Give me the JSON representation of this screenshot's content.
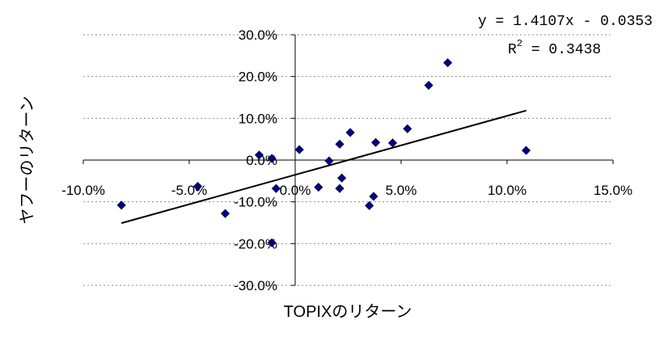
{
  "chart_data": {
    "type": "scatter",
    "xlabel": "TOPIXのリターン",
    "ylabel": "ヤフーのリターン",
    "xlim": [
      -0.1,
      0.15
    ],
    "ylim": [
      -0.3,
      0.3
    ],
    "x_ticks": [
      -0.1,
      -0.05,
      0.0,
      0.05,
      0.1,
      0.15
    ],
    "y_ticks": [
      0.3,
      0.2,
      0.1,
      0.0,
      -0.1,
      -0.2,
      -0.3
    ],
    "x_tick_labels": [
      "-10.0%",
      "-5.0%",
      "0.0%",
      "5.0%",
      "10.0%",
      "15.0%"
    ],
    "y_tick_labels": [
      "30.0%",
      "20.0%",
      "10.0%",
      "0.0%",
      "-10.0%",
      "-20.0%",
      "-30.0%"
    ],
    "grid": "horizontal dashed",
    "marker": "diamond",
    "marker_color": "#000080",
    "trendline_color": "#000000",
    "series": [
      {
        "points": [
          {
            "x": -0.082,
            "y": -0.108
          },
          {
            "x": -0.046,
            "y": -0.063
          },
          {
            "x": -0.033,
            "y": -0.128
          },
          {
            "x": -0.017,
            "y": 0.012
          },
          {
            "x": -0.011,
            "y": 0.004
          },
          {
            "x": -0.011,
            "y": -0.198
          },
          {
            "x": -0.009,
            "y": -0.068
          },
          {
            "x": 0.002,
            "y": 0.025
          },
          {
            "x": 0.011,
            "y": -0.065
          },
          {
            "x": 0.016,
            "y": -0.002
          },
          {
            "x": 0.021,
            "y": 0.038
          },
          {
            "x": 0.021,
            "y": -0.068
          },
          {
            "x": 0.022,
            "y": -0.043
          },
          {
            "x": 0.026,
            "y": 0.066
          },
          {
            "x": 0.035,
            "y": -0.109
          },
          {
            "x": 0.037,
            "y": -0.087
          },
          {
            "x": 0.038,
            "y": 0.042
          },
          {
            "x": 0.046,
            "y": 0.041
          },
          {
            "x": 0.053,
            "y": 0.075
          },
          {
            "x": 0.063,
            "y": 0.179
          },
          {
            "x": 0.072,
            "y": 0.233
          },
          {
            "x": 0.109,
            "y": 0.023
          }
        ]
      }
    ],
    "trendline": {
      "slope": 1.4107,
      "intercept": -0.0353,
      "x_range": [
        -0.082,
        0.109
      ]
    },
    "annotations": {
      "equation": "y = 1.4107x - 0.0353",
      "r2_prefix": "R",
      "r2_superscript": "2",
      "r2_value": " = 0.3438"
    }
  }
}
